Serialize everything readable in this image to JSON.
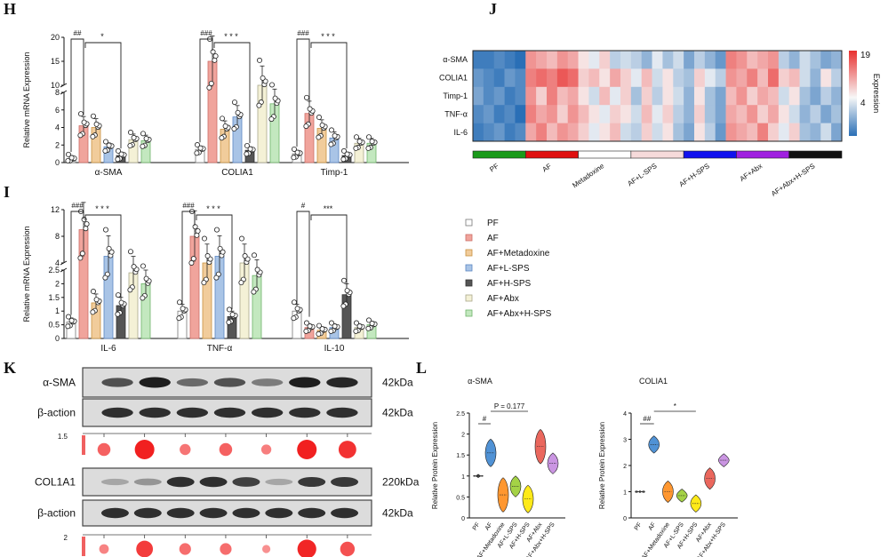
{
  "panels": {
    "H": "H",
    "I": "I",
    "J": "J",
    "K": "K",
    "L": "L"
  },
  "groups": [
    "PF",
    "AF",
    "AF+Metadoxine",
    "AF+L-SPS",
    "AF+H-SPS",
    "AF+Abx",
    "AF+Abx+H-SPS"
  ],
  "colors": {
    "bar": [
      "#ffffff",
      "#f0a49c",
      "#f1cc9b",
      "#a9c4e6",
      "#555555",
      "#f4f1d6",
      "#c3e8bf"
    ],
    "bar_stroke": [
      "#777777",
      "#cc6e66",
      "#c9923f",
      "#5a86c2",
      "#333333",
      "#aaa78a",
      "#6eb36a"
    ],
    "violin": [
      "#303030",
      "#3d86d0",
      "#ff8c1a",
      "#9acd32",
      "#ffe800",
      "#e8574b",
      "#c48adf"
    ],
    "strip": [
      "#1a9a1a",
      "#e01010",
      "#ffffff",
      "#f6dada",
      "#1111ee",
      "#a020e0",
      "#111111"
    ],
    "heat_low": "#2a6fb6",
    "heat_mid": "#f7f7f7",
    "heat_high": "#e8302f",
    "blot_dot": "#f01414"
  },
  "legend_items": [
    "PF",
    "AF",
    "AF+Metadoxine",
    "AF+L-SPS",
    "AF+H-SPS",
    "AF+Abx",
    "AF+Abx+H-SPS"
  ],
  "chart_data": [
    {
      "panel": "H",
      "type": "bar",
      "ylabel": "Relative mRNA Expression",
      "y_ticks_lower": [
        0,
        2,
        4,
        6,
        8
      ],
      "y_ticks_upper": [
        10,
        15,
        20
      ],
      "genes": [
        "α-SMA",
        "COLIA1",
        "Timp-1"
      ],
      "series": [
        {
          "name": "α-SMA",
          "values": [
            0.4,
            4.2,
            4.0,
            1.8,
            0.8,
            2.6,
            2.5
          ]
        },
        {
          "name": "COLIA1",
          "values": [
            1.5,
            15.0,
            3.8,
            5.2,
            1.4,
            10.0,
            6.7
          ]
        },
        {
          "name": "Timp-1",
          "values": [
            1.0,
            5.6,
            3.9,
            2.8,
            0.8,
            2.2,
            2.2
          ]
        }
      ],
      "annotations": [
        {
          "gene": "α-SMA",
          "left": "##",
          "right": "*"
        },
        {
          "gene": "COLIA1",
          "left": "###",
          "right": "* * *"
        },
        {
          "gene": "Timp-1",
          "left": "###",
          "right": "* * *"
        }
      ]
    },
    {
      "panel": "I",
      "type": "bar",
      "ylabel": "Relative mRNA Expression",
      "y_ticks_lower": [
        0,
        0.5,
        1.0,
        1.5,
        2.0,
        2.5
      ],
      "y_ticks_upper": [
        4,
        8,
        12
      ],
      "genes": [
        "IL-6",
        "TNF-α",
        "IL-10"
      ],
      "series": [
        {
          "name": "IL-6",
          "values": [
            0.6,
            9.0,
            1.3,
            5.0,
            1.2,
            2.4,
            2.0
          ]
        },
        {
          "name": "TNF-α",
          "values": [
            1.0,
            8.0,
            2.8,
            5.0,
            0.8,
            2.8,
            2.3
          ]
        },
        {
          "name": "IL-10",
          "values": [
            1.0,
            0.4,
            0.3,
            0.4,
            1.6,
            0.4,
            0.5
          ]
        }
      ],
      "annotations": [
        {
          "gene": "IL-6",
          "left": "###",
          "right": "* * *"
        },
        {
          "gene": "TNF-α",
          "left": "###",
          "right": "* * *"
        },
        {
          "gene": "IL-10",
          "left": "#",
          "right": "***"
        }
      ]
    },
    {
      "panel": "J",
      "type": "heatmap",
      "rows": [
        "α-SMA",
        "COLIA1",
        "Timp-1",
        "TNF-α",
        "IL-6"
      ],
      "colorbar_label": "Expression",
      "colorbar_ticks": [
        "19",
        "4"
      ],
      "column_groups": [
        "PF",
        "AF",
        "Metadoxine",
        "AF+L-SPS",
        "AF+H-SPS",
        "AF+Abx",
        "AF+Abx+H-SPS"
      ],
      "group_labels": [
        "PF",
        "AF",
        "Metadoxine",
        "AF+L-SPS",
        "AF+H-SPS",
        "AF+Abx",
        "AF+Abx+H-SPS"
      ],
      "values": [
        [
          -0.9,
          -0.9,
          -0.8,
          -0.9,
          -1.0,
          0.5,
          0.4,
          0.3,
          0.5,
          0.4,
          0.1,
          -0.1,
          0.2,
          -0.3,
          -0.2,
          -0.3,
          -0.5,
          -0.1,
          -0.4,
          -0.2,
          -0.6,
          -0.3,
          -0.5,
          -0.7,
          0.6,
          0.5,
          0.3,
          0.4,
          0.5,
          -0.3,
          -0.5,
          -0.2,
          -0.4,
          -0.6,
          -0.5
        ],
        [
          -0.7,
          -0.8,
          -0.9,
          -0.7,
          -0.8,
          0.6,
          0.7,
          0.6,
          0.8,
          0.7,
          0.2,
          0.3,
          0.1,
          0.4,
          0.2,
          -0.1,
          0.3,
          -0.2,
          0.1,
          -0.3,
          -0.4,
          0.2,
          -0.1,
          -0.3,
          0.5,
          0.4,
          0.6,
          0.3,
          0.7,
          0.2,
          0.3,
          -0.2,
          -0.5,
          0.1,
          -0.3
        ],
        [
          -0.6,
          -0.8,
          -0.7,
          -0.9,
          -0.8,
          0.5,
          0.2,
          0.6,
          0.3,
          0.4,
          0.1,
          -0.2,
          0.3,
          -0.1,
          0.2,
          -0.4,
          0.2,
          -0.3,
          0.1,
          -0.2,
          -0.5,
          0.1,
          -0.4,
          -0.6,
          0.3,
          0.5,
          0.2,
          0.4,
          0.3,
          -0.2,
          0.1,
          -0.4,
          -0.6,
          -0.3,
          -0.5
        ],
        [
          -0.8,
          -0.7,
          -0.9,
          -0.8,
          -1.0,
          0.6,
          0.4,
          0.5,
          0.2,
          0.5,
          0.3,
          0.1,
          -0.1,
          0.2,
          0.1,
          -0.2,
          0.3,
          -0.1,
          0.2,
          -0.3,
          -0.5,
          0.2,
          -0.4,
          -0.6,
          0.4,
          0.3,
          0.5,
          0.2,
          0.4,
          0.1,
          -0.2,
          -0.5,
          -0.3,
          -0.6,
          -0.4
        ],
        [
          -0.9,
          -0.8,
          -0.7,
          -0.9,
          -0.8,
          0.4,
          0.6,
          0.3,
          0.5,
          0.4,
          0.2,
          -0.1,
          0.1,
          0.3,
          -0.2,
          -0.3,
          0.2,
          -0.2,
          0.1,
          -0.4,
          -0.6,
          0.1,
          -0.3,
          -0.7,
          0.5,
          0.4,
          0.3,
          0.6,
          0.2,
          -0.1,
          0.2,
          -0.4,
          -0.5,
          -0.2,
          -0.6
        ]
      ]
    },
    {
      "panel": "K",
      "type": "table",
      "blots": [
        {
          "label": "α-SMA",
          "size": "42kDa",
          "intensity": [
            0.7,
            1.0,
            0.55,
            0.7,
            0.45,
            1.0,
            0.95
          ]
        },
        {
          "label": "β-action",
          "size": "42kDa",
          "intensity": [
            0.9,
            0.9,
            0.9,
            0.9,
            0.9,
            0.9,
            0.9
          ]
        },
        {
          "label": "COL1A1",
          "size": "220kDa",
          "intensity": [
            0.2,
            0.3,
            0.9,
            0.9,
            0.8,
            0.2,
            0.85,
            0.85
          ]
        },
        {
          "label": "β-action",
          "size": "42kDa",
          "intensity": [
            0.9,
            0.9,
            0.9,
            0.9,
            0.9,
            0.9,
            0.9,
            0.9
          ]
        }
      ],
      "dot_scales": [
        {
          "max": "1.5",
          "values": [
            0.8,
            1.5,
            0.6,
            0.8,
            0.5,
            1.5,
            1.3
          ]
        },
        {
          "max": "2",
          "values": [
            0.6,
            1.6,
            0.9,
            0.9,
            0.4,
            1.9,
            1.3
          ]
        }
      ]
    },
    {
      "panel": "L",
      "type": "scatter",
      "ylabel": "Relative Protein Expression",
      "plots": [
        {
          "title": "α-SMA",
          "ylim": [
            0,
            2.5
          ],
          "yticks": [
            0,
            0.5,
            1.0,
            1.5,
            2.0,
            2.5
          ],
          "means": [
            1.0,
            1.55,
            0.55,
            0.75,
            0.45,
            1.7,
            1.3
          ],
          "annot_left": "#",
          "annot_right": "P = 0.177"
        },
        {
          "title": "COLIA1",
          "ylim": [
            0,
            4
          ],
          "yticks": [
            0,
            1,
            2,
            3,
            4
          ],
          "means": [
            1.0,
            2.8,
            1.0,
            0.85,
            0.55,
            1.5,
            2.2
          ],
          "annot_left": "##",
          "annot_right": "*"
        }
      ]
    }
  ]
}
